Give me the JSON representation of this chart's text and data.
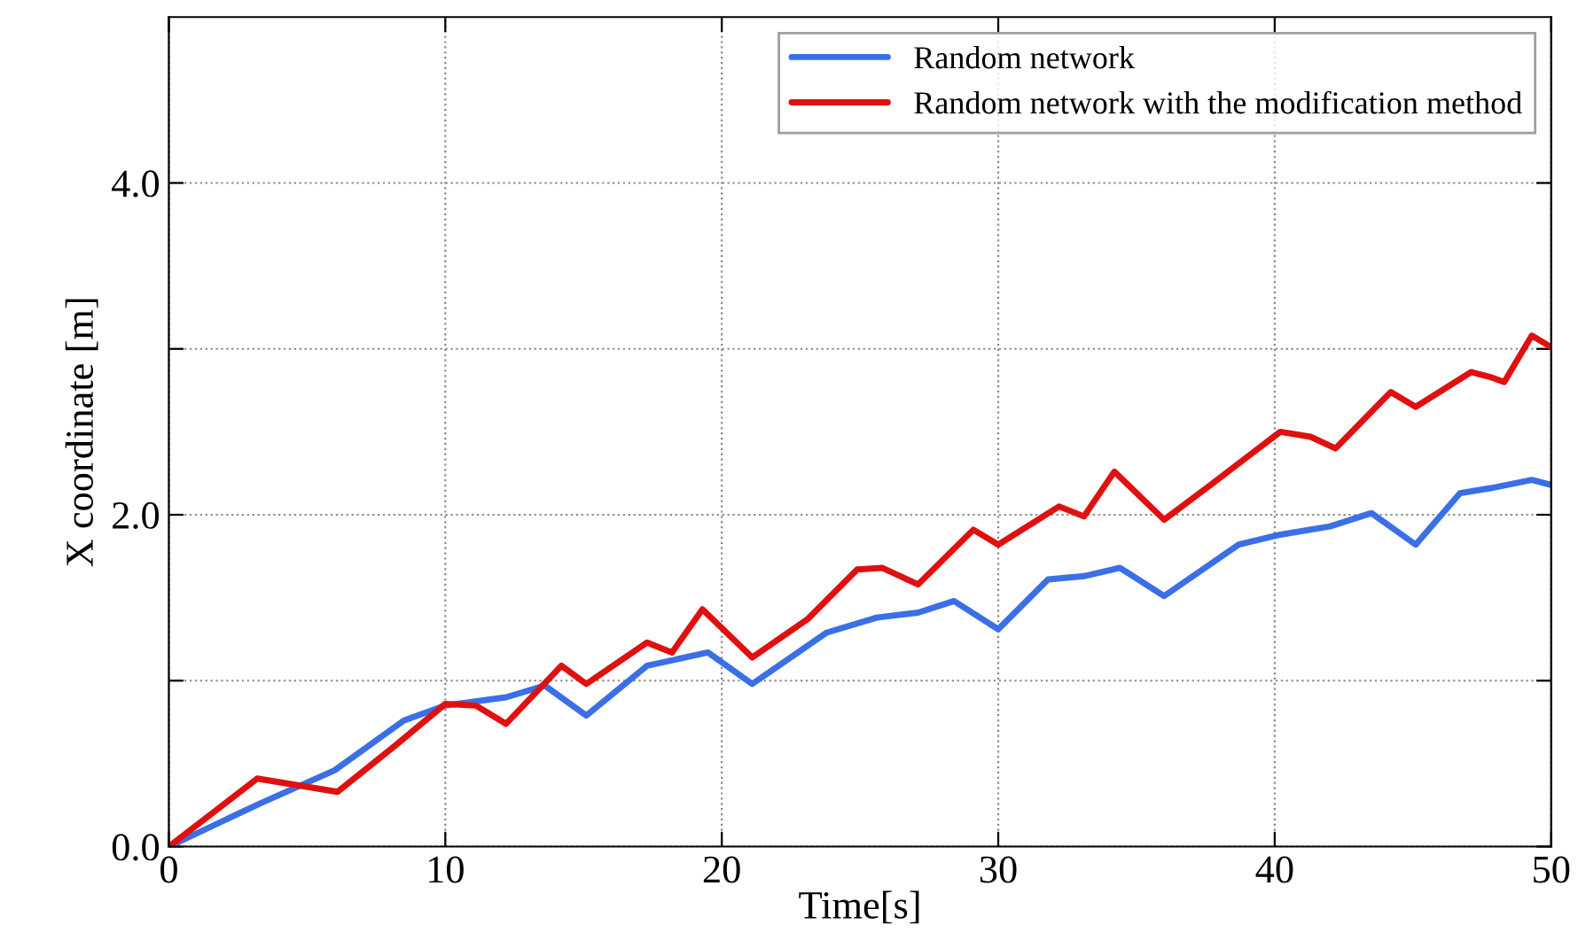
{
  "chart_data": {
    "type": "line",
    "xlabel": "Time[s]",
    "ylabel": "X coordinate [m]",
    "xlim": [
      0,
      50
    ],
    "xticks": [
      0,
      10,
      20,
      30,
      40,
      50
    ],
    "ylim": [
      0,
      5
    ],
    "yticks": [
      {
        "value": 0,
        "label": "0.0"
      },
      {
        "value": 1,
        "label": null
      },
      {
        "value": 2,
        "label": "2.0"
      },
      {
        "value": 3,
        "label": null
      },
      {
        "value": 4,
        "label": "4.0"
      }
    ],
    "grid": true,
    "legend": "top right",
    "line_style": "solid",
    "series": [
      {
        "name": "Random network",
        "color": "#3b6fe8",
        "x": [
          0,
          3.3,
          6,
          8.5,
          10,
          12.2,
          13.6,
          15.1,
          17.3,
          19.5,
          21.1,
          23.8,
          25.6,
          27.1,
          28.4,
          30,
          31.8,
          33.1,
          34.4,
          36,
          38.7,
          40.2,
          42,
          43.5,
          45.1,
          46.7,
          47.8,
          49.3,
          50
        ],
        "values": [
          0,
          0.26,
          0.46,
          0.76,
          0.85,
          0.9,
          0.97,
          0.79,
          1.09,
          1.17,
          0.98,
          1.29,
          1.38,
          1.41,
          1.48,
          1.31,
          1.61,
          1.63,
          1.68,
          1.51,
          1.82,
          1.88,
          1.93,
          2.01,
          1.82,
          2.13,
          2.16,
          2.21,
          2.18
        ]
      },
      {
        "name": "Random network with the modification method",
        "color": "#e01010",
        "x": [
          0,
          3.2,
          6.1,
          8.2,
          10,
          11.1,
          12.2,
          14.2,
          15.1,
          17.3,
          18.2,
          19.3,
          21.1,
          23.1,
          24.9,
          25.8,
          27.1,
          29.1,
          30,
          32.2,
          33.1,
          34.2,
          36,
          37.6,
          40.2,
          41.3,
          42.2,
          44.2,
          45.1,
          47.1,
          47.8,
          48.3,
          49.3,
          50
        ],
        "values": [
          0,
          0.41,
          0.33,
          0.61,
          0.86,
          0.85,
          0.74,
          1.09,
          0.98,
          1.23,
          1.17,
          1.43,
          1.14,
          1.37,
          1.67,
          1.68,
          1.58,
          1.91,
          1.82,
          2.05,
          1.99,
          2.26,
          1.97,
          2.17,
          2.5,
          2.47,
          2.4,
          2.74,
          2.65,
          2.86,
          2.83,
          2.8,
          3.08,
          3.01
        ]
      }
    ]
  }
}
